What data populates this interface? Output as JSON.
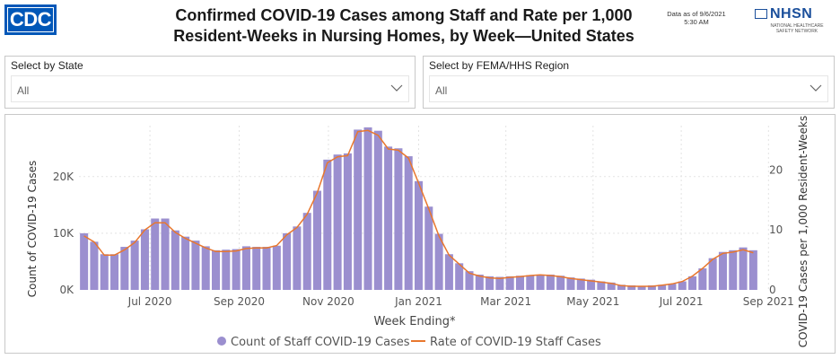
{
  "header": {
    "logo_text": "CDC",
    "title_line1": "Confirmed COVID-19 Cases among Staff and Rate per 1,000",
    "title_line2": "Resident-Weeks in Nursing Homes, by Week—United States",
    "as_of_line1": "Data as of 9/6/2021",
    "as_of_line2": "5:30 AM",
    "nhsn_text": "NHSN",
    "nhsn_sub1": "NATIONAL HEALTHCARE",
    "nhsn_sub2": "SAFETY NETWORK"
  },
  "filters": {
    "state": {
      "label": "Select by State",
      "value": "All"
    },
    "region": {
      "label": "Select by FEMA/HHS Region",
      "value": "All"
    }
  },
  "colors": {
    "bar": "#9b8fcf",
    "line": "#e8772e",
    "grid": "#e3e3e3"
  },
  "chart_data": {
    "type": "bar",
    "xlabel": "Week Ending*",
    "ylabel": "Count of COVID-19 Cases",
    "y2label": "COVID-19 Cases per 1,000 Resident-Weeks",
    "x_ticks": [
      "Jul 2020",
      "Sep 2020",
      "Nov 2020",
      "Jan 2021",
      "Mar 2021",
      "May 2021",
      "Jul 2021",
      "Sep 2021"
    ],
    "x_tick_index": [
      6.5,
      15.3,
      24.1,
      33.0,
      41.6,
      50.2,
      58.9,
      67.5
    ],
    "y_ticks": [
      "0K",
      "10K",
      "20K"
    ],
    "y_tick_values": [
      0,
      10000,
      20000
    ],
    "y2_ticks": [
      "0",
      "10",
      "20"
    ],
    "y2_tick_values": [
      0,
      10,
      20
    ],
    "ylim": [
      0,
      29000
    ],
    "y2lim": [
      0,
      27.4
    ],
    "legend": [
      "Count of Staff COVID-19 Cases",
      "Rate of COVID-19 Staff Cases"
    ],
    "legend_position": "bottom",
    "series": [
      {
        "name": "Count of Staff COVID-19 Cases",
        "type": "bar",
        "values": [
          10000,
          8500,
          6300,
          6300,
          7600,
          8700,
          10700,
          12600,
          12600,
          10500,
          9400,
          8700,
          7700,
          7000,
          7100,
          7200,
          7700,
          7600,
          7600,
          7800,
          10000,
          11200,
          13600,
          17500,
          23000,
          23900,
          24100,
          28300,
          28700,
          28100,
          25300,
          25000,
          23600,
          19200,
          14700,
          9900,
          6300,
          4700,
          3300,
          2700,
          2400,
          2300,
          2400,
          2500,
          2600,
          2700,
          2700,
          2500,
          2200,
          2000,
          1800,
          1500,
          1300,
          900,
          800,
          700,
          800,
          900,
          1100,
          1500,
          2400,
          3800,
          5600,
          6700,
          7000,
          7500,
          7000
        ]
      },
      {
        "name": "Rate of COVID-19 Staff Cases",
        "type": "line",
        "values": [
          9.0,
          8.0,
          5.8,
          5.8,
          6.7,
          7.9,
          10.0,
          11.2,
          11.2,
          9.6,
          8.6,
          7.8,
          7.0,
          6.4,
          6.4,
          6.5,
          6.9,
          7.0,
          7.0,
          7.4,
          9.2,
          10.4,
          12.6,
          16.2,
          21.2,
          22.2,
          22.4,
          26.4,
          26.6,
          25.8,
          23.5,
          23.3,
          22.0,
          17.8,
          13.5,
          9.0,
          5.8,
          4.3,
          2.8,
          2.3,
          2.0,
          1.9,
          2.1,
          2.2,
          2.4,
          2.5,
          2.4,
          2.2,
          1.9,
          1.7,
          1.5,
          1.3,
          1.1,
          0.7,
          0.6,
          0.6,
          0.6,
          0.8,
          1.0,
          1.4,
          2.3,
          3.6,
          5.1,
          6.1,
          6.3,
          6.7,
          6.2
        ]
      }
    ]
  }
}
